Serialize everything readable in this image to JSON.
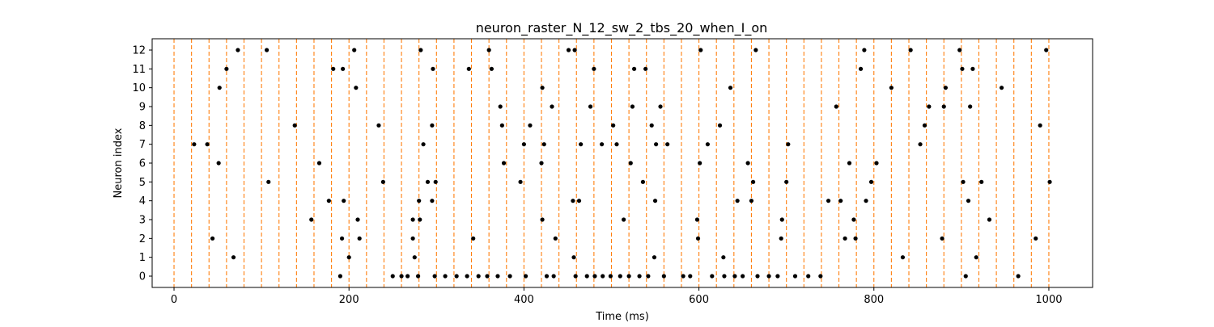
{
  "chart_data": {
    "type": "scatter",
    "title": "neuron_raster_N_12_sw_2_tbs_20_when_I_on",
    "xlabel": "Time (ms)",
    "ylabel": "Neuron index",
    "xlim": [
      -25,
      1050
    ],
    "ylim": [
      -0.6,
      12.6
    ],
    "x_ticks": [
      0,
      200,
      400,
      600,
      800,
      1000
    ],
    "y_ticks": [
      0,
      1,
      2,
      3,
      4,
      5,
      6,
      7,
      8,
      9,
      10,
      11,
      12
    ],
    "grid": false,
    "marker_color": "#000000",
    "vline_color": "#ff7f0e",
    "vline_x": [
      0,
      20,
      40,
      60,
      80,
      100,
      120,
      140,
      160,
      180,
      200,
      220,
      240,
      260,
      280,
      300,
      320,
      340,
      360,
      380,
      400,
      420,
      440,
      460,
      480,
      500,
      520,
      540,
      560,
      580,
      600,
      620,
      640,
      660,
      680,
      700,
      720,
      740,
      760,
      780,
      800,
      820,
      840,
      860,
      880,
      900,
      920,
      940,
      960,
      980,
      1000
    ],
    "series": [
      {
        "points": [
          [
            23,
            7
          ],
          [
            38,
            7
          ],
          [
            44,
            2
          ],
          [
            51,
            6
          ],
          [
            52,
            10
          ],
          [
            60,
            11
          ],
          [
            68,
            1
          ],
          [
            73,
            12
          ],
          [
            106,
            12
          ],
          [
            108,
            5
          ],
          [
            138,
            8
          ],
          [
            157,
            3
          ],
          [
            166,
            6
          ],
          [
            177,
            4
          ],
          [
            182,
            11
          ],
          [
            190,
            0
          ],
          [
            192,
            2
          ],
          [
            193,
            11
          ],
          [
            194,
            4
          ],
          [
            200,
            1
          ],
          [
            206,
            12
          ],
          [
            208,
            10
          ],
          [
            210,
            3
          ],
          [
            212,
            2
          ],
          [
            234,
            8
          ],
          [
            239,
            5
          ],
          [
            250,
            0
          ],
          [
            260,
            0
          ],
          [
            267,
            0
          ],
          [
            273,
            3
          ],
          [
            273,
            2
          ],
          [
            275,
            1
          ],
          [
            279,
            0
          ],
          [
            280,
            4
          ],
          [
            281,
            3
          ],
          [
            282,
            12
          ],
          [
            285,
            7
          ],
          [
            290,
            5
          ],
          [
            295,
            8
          ],
          [
            295,
            4
          ],
          [
            296,
            11
          ],
          [
            298,
            0
          ],
          [
            299,
            5
          ],
          [
            310,
            0
          ],
          [
            323,
            0
          ],
          [
            335,
            0
          ],
          [
            337,
            11
          ],
          [
            342,
            2
          ],
          [
            348,
            0
          ],
          [
            358,
            0
          ],
          [
            360,
            12
          ],
          [
            363,
            11
          ],
          [
            370,
            0
          ],
          [
            373,
            9
          ],
          [
            375,
            8
          ],
          [
            377,
            6
          ],
          [
            384,
            0
          ],
          [
            396,
            5
          ],
          [
            400,
            7
          ],
          [
            402,
            0
          ],
          [
            407,
            8
          ],
          [
            420,
            6
          ],
          [
            421,
            10
          ],
          [
            421,
            3
          ],
          [
            423,
            7
          ],
          [
            426,
            0
          ],
          [
            432,
            9
          ],
          [
            434,
            0
          ],
          [
            436,
            2
          ],
          [
            451,
            12
          ],
          [
            456,
            4
          ],
          [
            457,
            1
          ],
          [
            458,
            12
          ],
          [
            459,
            0
          ],
          [
            463,
            4
          ],
          [
            465,
            7
          ],
          [
            472,
            0
          ],
          [
            476,
            9
          ],
          [
            480,
            11
          ],
          [
            481,
            0
          ],
          [
            489,
            7
          ],
          [
            490,
            0
          ],
          [
            499,
            0
          ],
          [
            502,
            8
          ],
          [
            506,
            7
          ],
          [
            510,
            0
          ],
          [
            514,
            3
          ],
          [
            520,
            0
          ],
          [
            522,
            6
          ],
          [
            524,
            9
          ],
          [
            526,
            11
          ],
          [
            532,
            0
          ],
          [
            536,
            5
          ],
          [
            539,
            11
          ],
          [
            542,
            0
          ],
          [
            546,
            8
          ],
          [
            549,
            1
          ],
          [
            550,
            4
          ],
          [
            551,
            7
          ],
          [
            556,
            9
          ],
          [
            560,
            0
          ],
          [
            564,
            7
          ],
          [
            582,
            0
          ],
          [
            590,
            0
          ],
          [
            598,
            3
          ],
          [
            599,
            2
          ],
          [
            601,
            6
          ],
          [
            602,
            12
          ],
          [
            610,
            7
          ],
          [
            615,
            0
          ],
          [
            624,
            8
          ],
          [
            628,
            1
          ],
          [
            629,
            0
          ],
          [
            636,
            10
          ],
          [
            641,
            0
          ],
          [
            644,
            4
          ],
          [
            650,
            0
          ],
          [
            656,
            6
          ],
          [
            660,
            4
          ],
          [
            662,
            5
          ],
          [
            665,
            12
          ],
          [
            667,
            0
          ],
          [
            680,
            0
          ],
          [
            690,
            0
          ],
          [
            694,
            2
          ],
          [
            695,
            3
          ],
          [
            700,
            5
          ],
          [
            702,
            7
          ],
          [
            710,
            0
          ],
          [
            725,
            0
          ],
          [
            739,
            0
          ],
          [
            748,
            4
          ],
          [
            757,
            9
          ],
          [
            762,
            4
          ],
          [
            767,
            2
          ],
          [
            772,
            6
          ],
          [
            777,
            3
          ],
          [
            779,
            2
          ],
          [
            785,
            11
          ],
          [
            789,
            12
          ],
          [
            791,
            4
          ],
          [
            797,
            5
          ],
          [
            803,
            6
          ],
          [
            820,
            10
          ],
          [
            833,
            1
          ],
          [
            842,
            12
          ],
          [
            853,
            7
          ],
          [
            858,
            8
          ],
          [
            863,
            9
          ],
          [
            878,
            2
          ],
          [
            880,
            9
          ],
          [
            882,
            10
          ],
          [
            898,
            12
          ],
          [
            901,
            11
          ],
          [
            902,
            5
          ],
          [
            905,
            0
          ],
          [
            908,
            4
          ],
          [
            910,
            9
          ],
          [
            913,
            11
          ],
          [
            917,
            1
          ],
          [
            923,
            5
          ],
          [
            932,
            3
          ],
          [
            946,
            10
          ],
          [
            965,
            0
          ],
          [
            985,
            2
          ],
          [
            990,
            8
          ],
          [
            997,
            12
          ],
          [
            1001,
            5
          ]
        ]
      }
    ]
  }
}
